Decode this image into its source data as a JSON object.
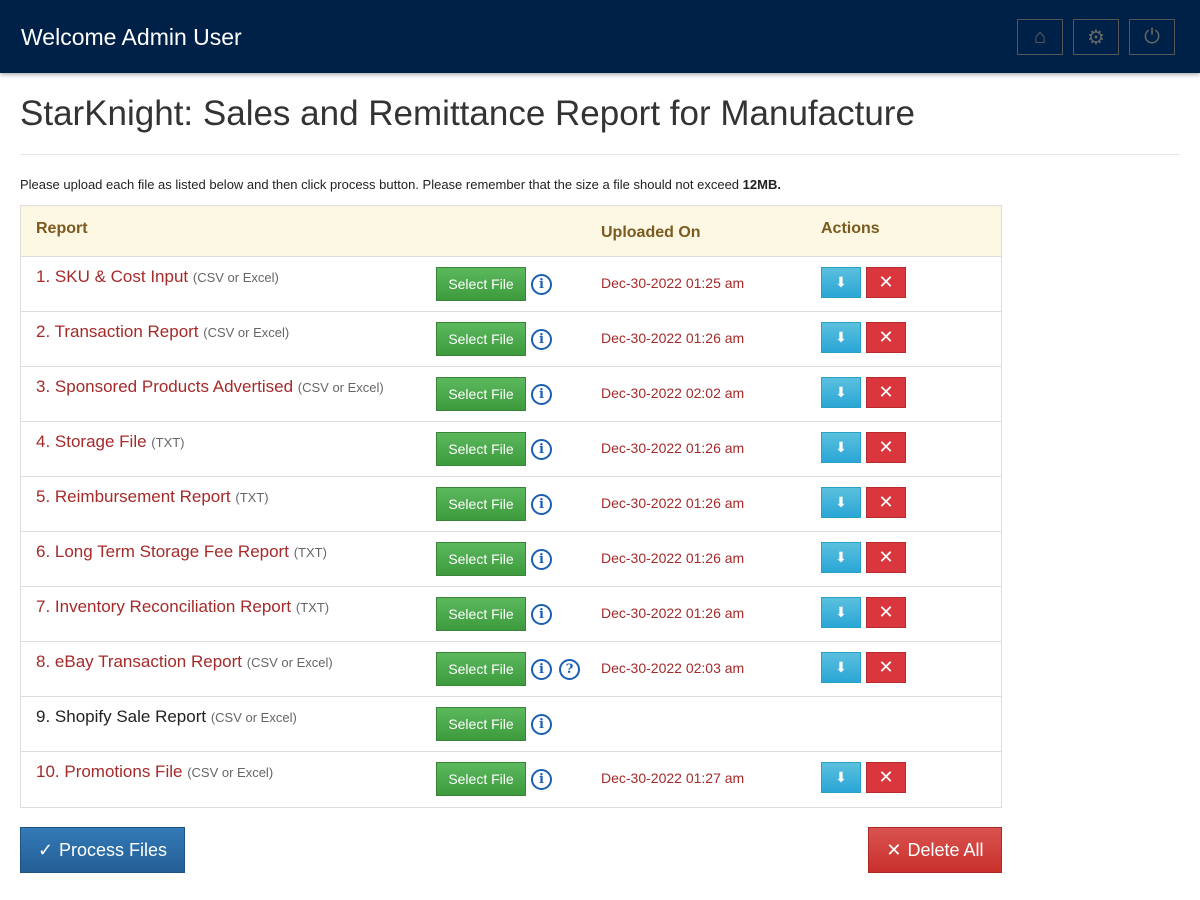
{
  "header": {
    "welcome": "Welcome Admin User",
    "icons": [
      "home-icon",
      "gear-icon",
      "power-icon"
    ]
  },
  "page": {
    "title": "StarKnight: Sales and Remittance Report for Manufacture",
    "note": "Please upload each file as listed below and then click process button. Please remember that the size a file should not exceed ",
    "note_bold": "12MB."
  },
  "table": {
    "columns": [
      "Report",
      "Uploaded On",
      "Actions"
    ],
    "select_label": "Select File",
    "rows": [
      {
        "label": "1. SKU & Cost Input",
        "format": "(CSV or Excel)",
        "uploaded": "Dec-30-2022 01:25 am"
      },
      {
        "label": "2. Transaction Report",
        "format": "(CSV or Excel)",
        "uploaded": "Dec-30-2022 01:26 am"
      },
      {
        "label": "3. Sponsored Products Advertised",
        "format": "(CSV or Excel)",
        "uploaded": "Dec-30-2022 02:02 am"
      },
      {
        "label": "4. Storage File",
        "format": "(TXT)",
        "uploaded": "Dec-30-2022 01:26 am"
      },
      {
        "label": "5. Reimbursement Report",
        "format": "(TXT)",
        "uploaded": "Dec-30-2022 01:26 am"
      },
      {
        "label": "6. Long Term Storage Fee Report",
        "format": "(TXT)",
        "uploaded": "Dec-30-2022 01:26 am"
      },
      {
        "label": "7. Inventory Reconciliation Report",
        "format": "(TXT)",
        "uploaded": "Dec-30-2022 01:26 am"
      },
      {
        "label": "8. eBay Transaction Report",
        "format": "(CSV or Excel)",
        "uploaded": "Dec-30-2022 02:03 am",
        "help": true
      },
      {
        "label": "9. Shopify Sale Report",
        "format": "(CSV or Excel)",
        "uploaded": null
      },
      {
        "label": "10. Promotions File",
        "format": "(CSV or Excel)",
        "uploaded": "Dec-30-2022 01:27 am"
      }
    ]
  },
  "buttons": {
    "process": "Process Files",
    "delete_all": "Delete All"
  },
  "colors": {
    "topbar": "#002147",
    "uploaded": "#a52a2a",
    "select": "#5cb85c",
    "download": "#5bc0de",
    "delete": "#d9363e",
    "process": "#337ab7"
  }
}
